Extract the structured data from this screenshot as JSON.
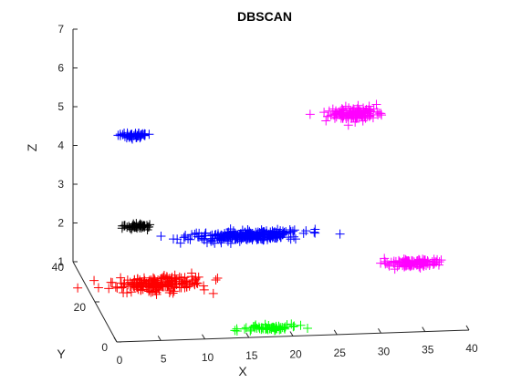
{
  "chart_data": {
    "type": "scatter",
    "title": "DBSCAN",
    "xlabel": "X",
    "ylabel": "Y",
    "zlabel": "Z",
    "xlim": [
      0,
      40
    ],
    "ylim": [
      0,
      40
    ],
    "zlim": [
      1,
      7
    ],
    "x_ticks": [
      0,
      5,
      10,
      15,
      20,
      25,
      30,
      35,
      40
    ],
    "y_ticks": [
      0,
      20,
      40
    ],
    "z_ticks": [
      1,
      2,
      3,
      4,
      5,
      6,
      7
    ],
    "marker": "+",
    "grid": false,
    "clusters": [
      {
        "color": "#0000ff",
        "count": 50,
        "center": [
          5.0,
          25.0,
          5.0
        ],
        "spread": [
          1.6,
          0.8,
          0.05
        ]
      },
      {
        "color": "#ff00ff",
        "count": 130,
        "center": [
          30.5,
          28.0,
          5.2
        ],
        "spread": [
          2.8,
          1.5,
          0.12
        ]
      },
      {
        "color": "#000000",
        "count": 45,
        "center": [
          5.0,
          22.0,
          2.8
        ],
        "spread": [
          1.4,
          0.7,
          0.05
        ]
      },
      {
        "color": "#0000ff",
        "count": 260,
        "center": [
          16.0,
          12.0,
          3.0
        ],
        "spread": [
          6.0,
          1.2,
          0.1
        ]
      },
      {
        "color": "#ff00ff",
        "count": 110,
        "center": [
          34.0,
          5.0,
          2.5
        ],
        "spread": [
          2.7,
          1.3,
          0.1
        ]
      },
      {
        "color": "#ff0000",
        "count": 200,
        "center": [
          5.5,
          5.0,
          2.2
        ],
        "spread": [
          4.5,
          1.5,
          0.15
        ]
      },
      {
        "color": "#00ff00",
        "count": 60,
        "center": [
          17.5,
          0.5,
          1.2
        ],
        "spread": [
          2.8,
          0.8,
          0.05
        ]
      }
    ]
  }
}
